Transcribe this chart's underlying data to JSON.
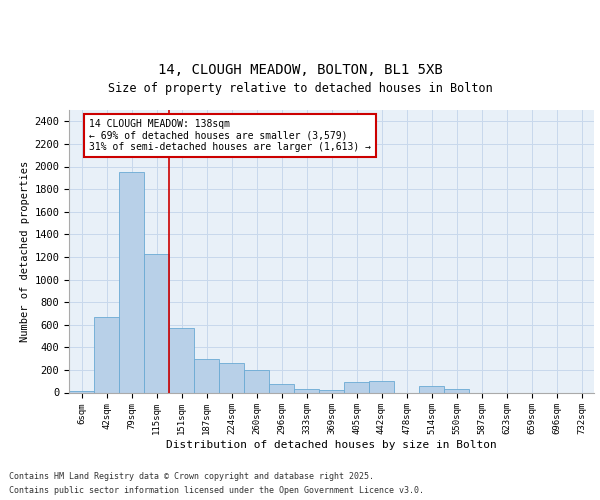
{
  "title1": "14, CLOUGH MEADOW, BOLTON, BL1 5XB",
  "title2": "Size of property relative to detached houses in Bolton",
  "xlabel": "Distribution of detached houses by size in Bolton",
  "ylabel": "Number of detached properties",
  "categories": [
    "6sqm",
    "42sqm",
    "79sqm",
    "115sqm",
    "151sqm",
    "187sqm",
    "224sqm",
    "260sqm",
    "296sqm",
    "333sqm",
    "369sqm",
    "405sqm",
    "442sqm",
    "478sqm",
    "514sqm",
    "550sqm",
    "587sqm",
    "623sqm",
    "659sqm",
    "696sqm",
    "732sqm"
  ],
  "values": [
    10,
    670,
    1950,
    1230,
    570,
    300,
    260,
    195,
    75,
    35,
    25,
    95,
    105,
    0,
    55,
    30,
    0,
    0,
    0,
    0,
    0
  ],
  "bar_color": "#b8d0e8",
  "bar_edge_color": "#6aaad4",
  "grid_color": "#c8d8ec",
  "bg_color": "#e8f0f8",
  "red_color": "#cc0000",
  "annotation_text": "14 CLOUGH MEADOW: 138sqm\n← 69% of detached houses are smaller (3,579)\n31% of semi-detached houses are larger (1,613) →",
  "footnote1": "Contains HM Land Registry data © Crown copyright and database right 2025.",
  "footnote2": "Contains public sector information licensed under the Open Government Licence v3.0.",
  "ylim": [
    0,
    2500
  ],
  "yticks": [
    0,
    200,
    400,
    600,
    800,
    1000,
    1200,
    1400,
    1600,
    1800,
    2000,
    2200,
    2400
  ]
}
